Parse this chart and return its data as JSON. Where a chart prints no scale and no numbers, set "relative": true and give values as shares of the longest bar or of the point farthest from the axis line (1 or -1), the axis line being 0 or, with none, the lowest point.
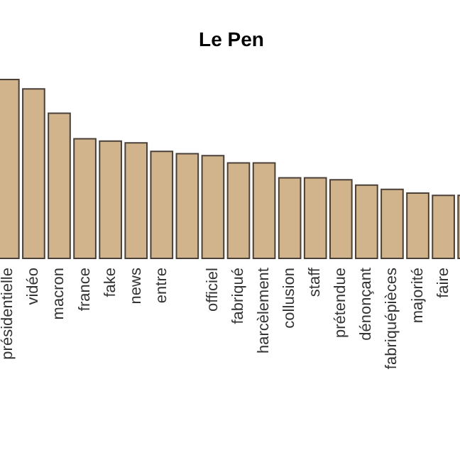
{
  "chart_data": {
    "type": "bar",
    "title": "Le Pen",
    "relative": true,
    "color": "#d2b48c",
    "categories": [
      "présidentielle",
      "vidéo",
      "macron",
      "france",
      "fake",
      "news",
      "entre",
      null,
      "officiel",
      "fabriqué",
      "harcèlement",
      "collusion",
      "staff",
      "prétendue",
      "dénonçant",
      "fabriquépièces",
      "majorité",
      "faire",
      null
    ],
    "values": [
      1,
      0.947,
      0.812,
      0.669,
      0.656,
      0.646,
      0.598,
      0.585,
      0.574,
      0.534,
      0.534,
      0.45,
      0.45,
      0.439,
      0.41,
      0.386,
      0.365,
      0.352,
      0.352
    ]
  }
}
